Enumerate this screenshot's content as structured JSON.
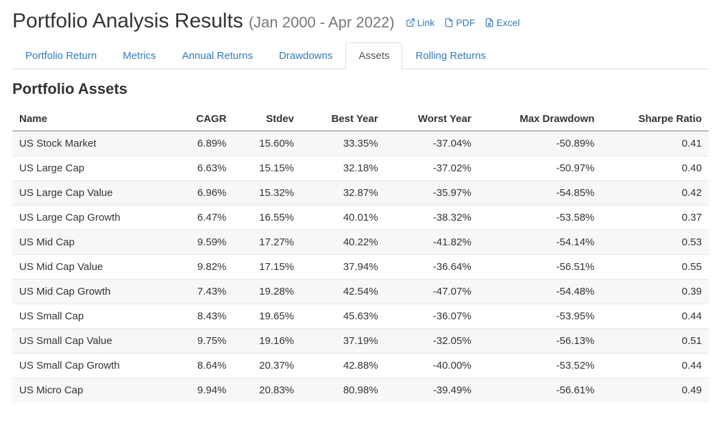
{
  "header": {
    "title": "Portfolio Analysis Results",
    "date_range": "(Jan 2000 - Apr 2022)",
    "exports": {
      "link": "Link",
      "pdf": "PDF",
      "excel": "Excel"
    }
  },
  "tabs": [
    {
      "label": "Portfolio Return",
      "active": false
    },
    {
      "label": "Metrics",
      "active": false
    },
    {
      "label": "Annual Returns",
      "active": false
    },
    {
      "label": "Drawdowns",
      "active": false
    },
    {
      "label": "Assets",
      "active": true
    },
    {
      "label": "Rolling Returns",
      "active": false
    }
  ],
  "section": {
    "title": "Portfolio Assets"
  },
  "table": {
    "columns": [
      "Name",
      "CAGR",
      "Stdev",
      "Best Year",
      "Worst Year",
      "Max Drawdown",
      "Sharpe Ratio"
    ],
    "rows": [
      [
        "US Stock Market",
        "6.89%",
        "15.60%",
        "33.35%",
        "-37.04%",
        "-50.89%",
        "0.41"
      ],
      [
        "US Large Cap",
        "6.63%",
        "15.15%",
        "32.18%",
        "-37.02%",
        "-50.97%",
        "0.40"
      ],
      [
        "US Large Cap Value",
        "6.96%",
        "15.32%",
        "32.87%",
        "-35.97%",
        "-54.85%",
        "0.42"
      ],
      [
        "US Large Cap Growth",
        "6.47%",
        "16.55%",
        "40.01%",
        "-38.32%",
        "-53.58%",
        "0.37"
      ],
      [
        "US Mid Cap",
        "9.59%",
        "17.27%",
        "40.22%",
        "-41.82%",
        "-54.14%",
        "0.53"
      ],
      [
        "US Mid Cap Value",
        "9.82%",
        "17.15%",
        "37.94%",
        "-36.64%",
        "-56.51%",
        "0.55"
      ],
      [
        "US Mid Cap Growth",
        "7.43%",
        "19.28%",
        "42.54%",
        "-47.07%",
        "-54.48%",
        "0.39"
      ],
      [
        "US Small Cap",
        "8.43%",
        "19.65%",
        "45.63%",
        "-36.07%",
        "-53.95%",
        "0.44"
      ],
      [
        "US Small Cap Value",
        "9.75%",
        "19.16%",
        "37.19%",
        "-32.05%",
        "-56.13%",
        "0.51"
      ],
      [
        "US Small Cap Growth",
        "8.64%",
        "20.37%",
        "42.88%",
        "-40.00%",
        "-53.52%",
        "0.44"
      ],
      [
        "US Micro Cap",
        "9.94%",
        "20.83%",
        "80.98%",
        "-39.49%",
        "-56.61%",
        "0.49"
      ]
    ]
  },
  "colors": {
    "link": "#337ab7",
    "text": "#333333",
    "muted": "#777777",
    "border": "#dddddd",
    "row_stripe": "#f7f7f7"
  }
}
